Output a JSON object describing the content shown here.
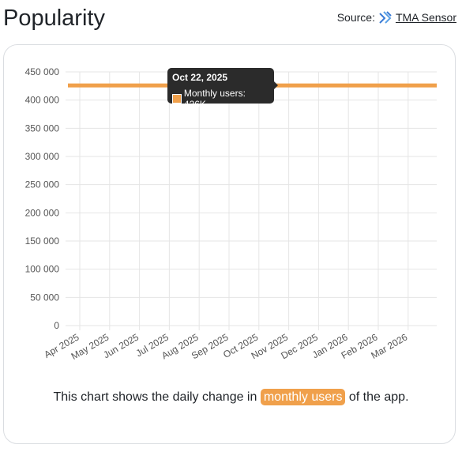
{
  "header": {
    "title": "Popularity",
    "source_label": "Source:",
    "source_link": "TMA Sensor",
    "source_icon": "tma-sensor-logo-icon"
  },
  "footer": {
    "text_before": "This chart shows the daily change in",
    "highlight": "monthly users",
    "text_after": "of the app."
  },
  "tooltip": {
    "date": "Oct 22, 2025",
    "label": "Monthly users: 426K"
  },
  "colors": {
    "series": "#f0a04b",
    "grid": "#e5e5e5",
    "tooltip_bg": "#2b2b2b"
  },
  "chart_data": {
    "type": "line",
    "title": "",
    "xlabel": "",
    "ylabel": "",
    "ylim": [
      0,
      450000
    ],
    "yticks": [
      0,
      50000,
      100000,
      150000,
      200000,
      250000,
      300000,
      350000,
      400000,
      450000
    ],
    "ytick_labels": [
      "0",
      "50 000",
      "100 000",
      "150 000",
      "200 000",
      "250 000",
      "300 000",
      "350 000",
      "400 000",
      "450 000"
    ],
    "xtick_labels": [
      "Apr 2025",
      "May 2025",
      "Jun 2025",
      "Jul 2025",
      "Aug 2025",
      "Sep 2025",
      "Oct 2025",
      "Nov 2025",
      "Dec 2025",
      "Jan 2026",
      "Feb 2026",
      "Mar 2026"
    ],
    "grid": true,
    "series": [
      {
        "name": "Monthly users",
        "x": [
          "Mar 2025",
          "Oct 22, 2025",
          "Apr 2026"
        ],
        "values": [
          426000,
          426000,
          426000
        ]
      }
    ]
  }
}
